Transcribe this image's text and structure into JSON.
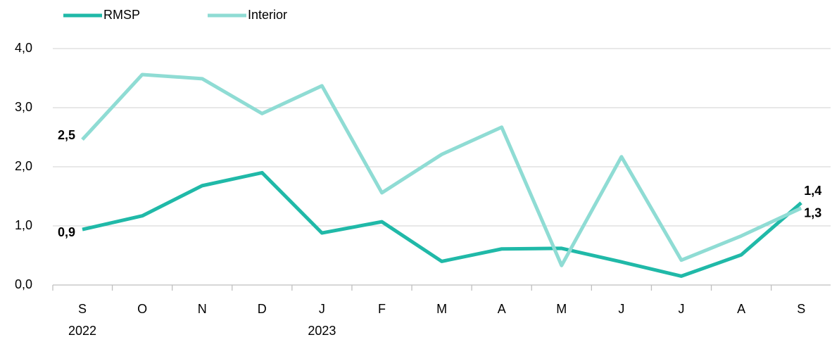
{
  "chart_data": {
    "type": "line",
    "categories": [
      "S",
      "O",
      "N",
      "D",
      "J",
      "F",
      "M",
      "A",
      "M",
      "J",
      "J",
      "A",
      "S"
    ],
    "category_groups": [
      "2022",
      null,
      null,
      null,
      "2023",
      null,
      null,
      null,
      null,
      null,
      null,
      null,
      null
    ],
    "series": [
      {
        "name": "RMSP",
        "color": "#20b9a8",
        "values": [
          0.94,
          1.17,
          1.68,
          1.9,
          0.88,
          1.07,
          0.4,
          0.61,
          0.62,
          0.39,
          0.15,
          0.51,
          1.39
        ],
        "value_labels": [
          "0,9",
          null,
          null,
          null,
          null,
          null,
          null,
          null,
          null,
          null,
          null,
          null,
          "1,4"
        ]
      },
      {
        "name": "Interior",
        "color": "#8fdcd4",
        "values": [
          2.46,
          3.56,
          3.49,
          2.9,
          3.37,
          1.56,
          2.21,
          2.67,
          0.33,
          2.17,
          0.42,
          0.83,
          1.3
        ],
        "value_labels": [
          "2,5",
          null,
          null,
          null,
          null,
          null,
          null,
          null,
          null,
          null,
          null,
          null,
          "1,3"
        ]
      }
    ],
    "ylim": [
      0,
      4
    ],
    "yticks": [
      {
        "value": 0,
        "label": "0,0"
      },
      {
        "value": 1,
        "label": "1,0"
      },
      {
        "value": 2,
        "label": "2,0"
      },
      {
        "value": 3,
        "label": "3,0"
      },
      {
        "value": 4,
        "label": "4,0"
      }
    ],
    "grid": true,
    "legend": "top-left"
  }
}
